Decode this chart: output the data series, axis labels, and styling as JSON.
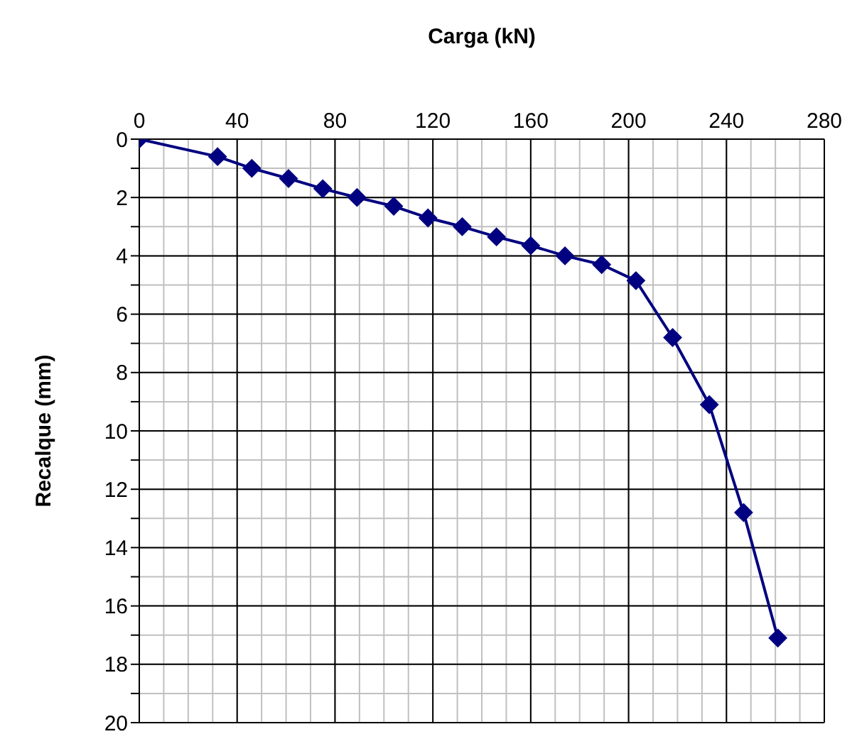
{
  "chart_data": {
    "type": "line",
    "xlabel": "Carga (kN)",
    "ylabel": "Recalque (mm)",
    "x": [
      0,
      32,
      46,
      61,
      75,
      89,
      104,
      118,
      132,
      146,
      160,
      174,
      189,
      203,
      218,
      233,
      247,
      261
    ],
    "series": [
      {
        "color": "#000080",
        "values": [
          0,
          0.6,
          1.0,
          1.35,
          1.7,
          2.0,
          2.3,
          2.7,
          3.0,
          3.35,
          3.65,
          4.0,
          4.3,
          4.85,
          6.8,
          9.1,
          12.8,
          17.1
        ]
      }
    ],
    "xlim": [
      0,
      280
    ],
    "xticks": [
      0,
      {
        "value": 10,
        "label": null
      },
      {
        "value": 20,
        "label": null
      },
      {
        "value": 30,
        "label": null
      },
      40,
      {
        "value": 50,
        "label": null
      },
      {
        "value": 60,
        "label": null
      },
      {
        "value": 70,
        "label": null
      },
      80,
      {
        "value": 90,
        "label": null
      },
      {
        "value": 100,
        "label": null
      },
      {
        "value": 110,
        "label": null
      },
      120,
      {
        "value": 130,
        "label": null
      },
      {
        "value": 140,
        "label": null
      },
      {
        "value": 150,
        "label": null
      },
      160,
      {
        "value": 170,
        "label": null
      },
      {
        "value": 180,
        "label": null
      },
      {
        "value": 190,
        "label": null
      },
      200,
      {
        "value": 210,
        "label": null
      },
      {
        "value": 220,
        "label": null
      },
      {
        "value": 230,
        "label": null
      },
      240,
      {
        "value": 250,
        "label": null
      },
      {
        "value": 260,
        "label": null
      },
      {
        "value": 270,
        "label": null
      },
      280
    ],
    "ylim": [
      20,
      0
    ],
    "yticks": [
      0,
      {
        "value": 1,
        "label": null
      },
      2,
      {
        "value": 3,
        "label": null
      },
      4,
      {
        "value": 5,
        "label": null
      },
      6,
      {
        "value": 7,
        "label": null
      },
      8,
      {
        "value": 9,
        "label": null
      },
      10,
      {
        "value": 11,
        "label": null
      },
      12,
      {
        "value": 13,
        "label": null
      },
      14,
      {
        "value": 15,
        "label": null
      },
      16,
      {
        "value": 17,
        "label": null
      },
      18,
      {
        "value": 19,
        "label": null
      },
      20
    ],
    "grid": true,
    "legend": false,
    "marker": "diamond",
    "line_style": "solid"
  }
}
